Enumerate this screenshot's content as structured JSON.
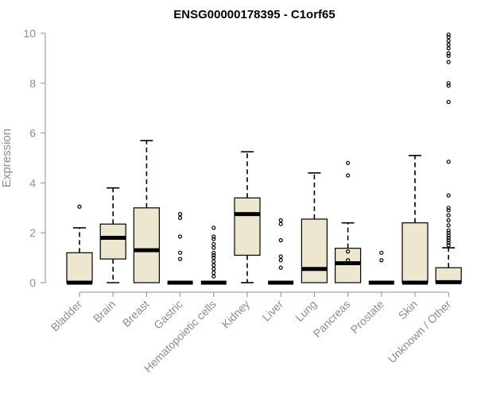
{
  "chart_data": {
    "type": "boxplot",
    "title": "ENSG00000178395 - C1orf65",
    "ylabel": "Expression",
    "xlabel": "",
    "ylim": [
      0,
      10
    ],
    "yticks": [
      0,
      2,
      4,
      6,
      8,
      10
    ],
    "grid": false,
    "legend": "none",
    "colors": {
      "box_fill": "#ede7cf",
      "box_stroke": "#000000",
      "median": "#000000",
      "axis": "#8c8c8c",
      "tick_label": "#8c8c8c"
    },
    "categories": [
      "Bladder",
      "Brain",
      "Breast",
      "Gastric",
      "Hematopoietic cells",
      "Kidney",
      "Liver",
      "Lung",
      "Pancreas",
      "Prostate",
      "Skin",
      "Unknown / Other"
    ],
    "boxes": [
      {
        "category": "Bladder",
        "q1": 0,
        "median": 0,
        "q3": 1.2,
        "whisker_low": 0,
        "whisker_high": 2.2,
        "outliers": [
          3.05
        ]
      },
      {
        "category": "Brain",
        "q1": 0.95,
        "median": 1.8,
        "q3": 2.35,
        "whisker_low": 0,
        "whisker_high": 3.8,
        "outliers": []
      },
      {
        "category": "Breast",
        "q1": 0,
        "median": 1.3,
        "q3": 3.0,
        "whisker_low": 0,
        "whisker_high": 5.7,
        "outliers": []
      },
      {
        "category": "Gastric",
        "q1": 0,
        "median": 0,
        "q3": 0,
        "whisker_low": 0,
        "whisker_high": 0,
        "outliers": [
          0.95,
          1.2,
          1.85,
          2.6,
          2.75
        ]
      },
      {
        "category": "Hematopoietic cells",
        "q1": 0,
        "median": 0,
        "q3": 0,
        "whisker_low": 0,
        "whisker_high": 0,
        "outliers": [
          0.25,
          0.4,
          0.55,
          0.7,
          0.85,
          1.0,
          1.1,
          1.2,
          1.4,
          1.55,
          1.75,
          1.85,
          2.2
        ]
      },
      {
        "category": "Kidney",
        "q1": 1.1,
        "median": 2.75,
        "q3": 3.4,
        "whisker_low": 0,
        "whisker_high": 5.25,
        "outliers": []
      },
      {
        "category": "Liver",
        "q1": 0,
        "median": 0,
        "q3": 0,
        "whisker_low": 0,
        "whisker_high": 0,
        "outliers": [
          0.6,
          0.9,
          1.05,
          1.7,
          2.35,
          2.5
        ]
      },
      {
        "category": "Lung",
        "q1": 0,
        "median": 0.55,
        "q3": 2.55,
        "whisker_low": 0,
        "whisker_high": 4.4,
        "outliers": []
      },
      {
        "category": "Pancreas",
        "q1": 0,
        "median": 0.78,
        "q3": 1.38,
        "whisker_low": 0,
        "whisker_high": 2.4,
        "outliers": [
          0.9,
          1.25,
          4.3,
          4.8
        ]
      },
      {
        "category": "Prostate",
        "q1": 0,
        "median": 0,
        "q3": 0,
        "whisker_low": 0,
        "whisker_high": 0,
        "outliers": [
          0.9,
          1.2
        ]
      },
      {
        "category": "Skin",
        "q1": 0,
        "median": 0,
        "q3": 2.4,
        "whisker_low": 0,
        "whisker_high": 5.1,
        "outliers": []
      },
      {
        "category": "Unknown / Other",
        "q1": 0,
        "median": 0.02,
        "q3": 0.6,
        "whisker_low": 0,
        "whisker_high": 1.4,
        "outliers": [
          1.5,
          1.6,
          1.7,
          1.8,
          1.9,
          2.0,
          2.1,
          2.3,
          2.5,
          2.7,
          2.9,
          3.0,
          3.5,
          4.85,
          7.25,
          7.9,
          8.0,
          8.85,
          9.1,
          9.2,
          9.4,
          9.55,
          9.7,
          9.85,
          9.95
        ]
      }
    ]
  }
}
